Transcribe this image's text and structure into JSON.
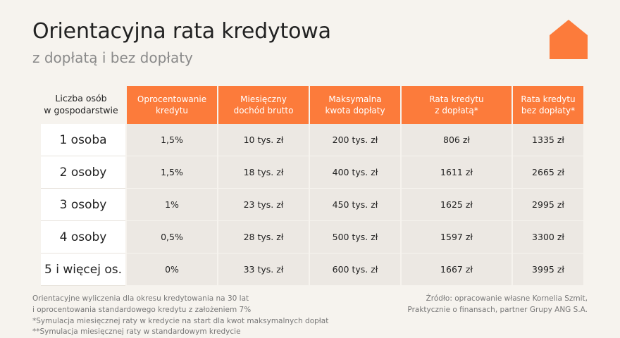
{
  "header": {
    "title": "Orientacyjna rata kredytowa",
    "subtitle": "z dopłatą i bez dopłaty",
    "logo_icon": "house-icon",
    "accent_color": "#fc7b3b"
  },
  "table": {
    "corner_line1": "Liczba osób",
    "corner_line2": "w gospodarstwie",
    "columns": [
      {
        "line1": "Oprocentowanie",
        "line2": "kredytu"
      },
      {
        "line1": "Miesięczny",
        "line2": "dochód brutto"
      },
      {
        "line1": "Maksymalna",
        "line2": "kwota dopłaty"
      },
      {
        "line1": "Rata kredytu",
        "line2": "z dopłatą*"
      },
      {
        "line1": "Rata kredytu",
        "line2": "bez dopłaty*"
      }
    ],
    "rows": [
      {
        "label": "1 osoba",
        "cells": [
          "1,5%",
          "10 tys. zł",
          "200 tys. zł",
          "806 zł",
          "1335 zł"
        ]
      },
      {
        "label": "2 osoby",
        "cells": [
          "1,5%",
          "18 tys. zł",
          "400 tys. zł",
          "1611 zł",
          "2665 zł"
        ]
      },
      {
        "label": "3 osoby",
        "cells": [
          "1%",
          "23 tys. zł",
          "450 tys. zł",
          "1625 zł",
          "2995 zł"
        ]
      },
      {
        "label": "4 osoby",
        "cells": [
          "0,5%",
          "28 tys. zł",
          "500 tys. zł",
          "1597 zł",
          "3300 zł"
        ]
      },
      {
        "label": "5 i więcej os.",
        "cells": [
          "0%",
          "33 tys. zł",
          "600 tys. zł",
          "1667 zł",
          "3995 zł"
        ]
      }
    ]
  },
  "footnotes": {
    "left": [
      "Orientacyjne wyliczenia dla okresu kredytowania na 30 lat",
      "i oprocentowania standardowego kredytu z założeniem 7%",
      "*Symulacja miesięcznej raty w kredycie na start dla kwot maksymalnych dopłat",
      "**Symulacja miesięcznej raty w standardowym kredycie"
    ],
    "right": [
      "Źródło: opracowanie własne Kornelia Szmit,",
      "Praktycznie o finansach, partner Grupy ANG S.A."
    ]
  }
}
